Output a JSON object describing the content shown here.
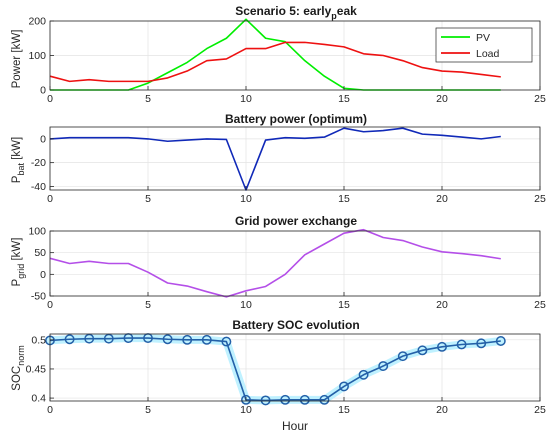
{
  "figure": {
    "xlabel": "Hour"
  },
  "chart_data": [
    {
      "type": "line",
      "title_main": "Scenario 5: early",
      "title_sub": "p",
      "title_tail": "eak",
      "ylabel": "Power [kW]",
      "xlim": [
        0,
        25
      ],
      "ylim": [
        0,
        200
      ],
      "xticks": [
        "0",
        "5",
        "10",
        "15",
        "20",
        "25"
      ],
      "yticks": [
        "0",
        "100",
        "200"
      ],
      "legend_position": "top-right",
      "x": [
        0,
        1,
        2,
        3,
        4,
        5,
        6,
        7,
        8,
        9,
        10,
        11,
        12,
        13,
        14,
        15,
        16,
        17,
        18,
        19,
        20,
        21,
        22,
        23
      ],
      "series": [
        {
          "name": "PV",
          "color": "#00ee00",
          "values": [
            0,
            0,
            0,
            0,
            0,
            20,
            50,
            80,
            120,
            150,
            205,
            150,
            140,
            85,
            40,
            5,
            0,
            0,
            0,
            0,
            0,
            0,
            0,
            0
          ]
        },
        {
          "name": "Load",
          "color": "#ee1111",
          "values": [
            40,
            25,
            30,
            25,
            25,
            25,
            35,
            55,
            85,
            90,
            120,
            120,
            138,
            138,
            132,
            125,
            105,
            100,
            85,
            65,
            55,
            52,
            45,
            38
          ]
        }
      ]
    },
    {
      "type": "line",
      "title_main": "Battery power (optimum)",
      "ylabel_main": "P",
      "ylabel_sub": "bat",
      "ylabel_tail": " [kW]",
      "xlim": [
        0,
        25
      ],
      "ylim": [
        -43,
        10
      ],
      "xticks": [
        "0",
        "5",
        "10",
        "15",
        "20",
        "25"
      ],
      "yticks": [
        "0",
        "-20",
        "-40"
      ],
      "x": [
        0,
        1,
        2,
        3,
        4,
        5,
        6,
        7,
        8,
        9,
        10,
        11,
        12,
        13,
        14,
        15,
        16,
        17,
        18,
        19,
        20,
        21,
        22,
        23
      ],
      "series": [
        {
          "color": "#1029b8",
          "values": [
            0,
            1,
            1,
            1,
            1,
            0,
            -2,
            -1,
            0,
            -0.5,
            -43,
            -1,
            1,
            0.5,
            1.5,
            9,
            6,
            7,
            9,
            4,
            3,
            1.5,
            0,
            2
          ]
        }
      ]
    },
    {
      "type": "line",
      "title_main": "Grid power exchange",
      "ylabel_main": "P",
      "ylabel_sub": "grid",
      "ylabel_tail": " [kW]",
      "xlim": [
        0,
        25
      ],
      "ylim": [
        -50,
        100
      ],
      "xticks": [
        "0",
        "5",
        "10",
        "15",
        "20",
        "25"
      ],
      "yticks": [
        "100",
        "50",
        "0",
        "-50"
      ],
      "x": [
        0,
        1,
        2,
        3,
        4,
        5,
        6,
        7,
        8,
        9,
        10,
        11,
        12,
        13,
        14,
        15,
        16,
        17,
        18,
        19,
        20,
        21,
        22,
        23
      ],
      "series": [
        {
          "color": "#b44fe8",
          "values": [
            37,
            25,
            30,
            25,
            25,
            5,
            -20,
            -27,
            -40,
            -52,
            -38,
            -28,
            0,
            45,
            70,
            95,
            103,
            85,
            78,
            63,
            52,
            48,
            43,
            36
          ]
        }
      ]
    },
    {
      "type": "line",
      "title_main": "Battery SOC evolution",
      "ylabel_main": "SOC",
      "ylabel_sub": "norm",
      "ylabel_tail": "",
      "xlim": [
        0,
        25
      ],
      "ylim": [
        0.395,
        0.51
      ],
      "xticks": [
        "0",
        "5",
        "10",
        "15",
        "20",
        "25"
      ],
      "yticks": [
        "0.5",
        "0.45",
        "0.4"
      ],
      "glow_color": "#b8f0ff",
      "x": [
        0,
        1,
        2,
        3,
        4,
        5,
        6,
        7,
        8,
        9,
        10,
        11,
        12,
        13,
        14,
        15,
        16,
        17,
        18,
        19,
        20,
        21,
        22,
        23
      ],
      "series": [
        {
          "color": "#2360a8",
          "values": [
            0.499,
            0.501,
            0.502,
            0.502,
            0.503,
            0.503,
            0.501,
            0.5,
            0.5,
            0.497,
            0.397,
            0.396,
            0.397,
            0.397,
            0.397,
            0.42,
            0.44,
            0.455,
            0.472,
            0.482,
            0.488,
            0.492,
            0.494,
            0.498
          ]
        }
      ]
    }
  ]
}
